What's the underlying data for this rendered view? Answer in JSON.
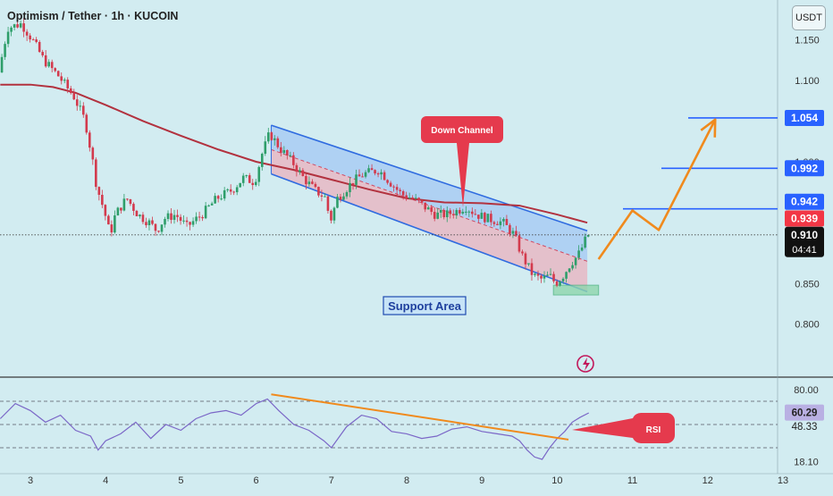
{
  "header": {
    "title": "Optimism / Tether · 1h · KUCOIN",
    "quote_currency": "USDT"
  },
  "annotations": {
    "down_channel": "Down Channel",
    "support_area": "Support Area",
    "rsi": "RSI"
  },
  "colors": {
    "background": "#d2ecf1",
    "candle_up": "#2e9e6a",
    "candle_down": "#d33a4d",
    "moving_average": "#b2323f",
    "channel_upper": "#a9cdf3",
    "channel_lower": "#e7b9c4",
    "channel_line": "#2f6be0",
    "support_zone": "#8fd6ad",
    "projection": "#f08a1d",
    "rsi_line": "#7b67c7",
    "callout_red": "#e53a4d",
    "label_blue": "#2962ff",
    "label_red": "#f23645"
  },
  "chart_data": [
    {
      "type": "candlestick",
      "pair": "Optimism / Tether",
      "timeframe": "1h",
      "exchange": "KUCOIN",
      "x_ticks": [
        "3",
        "4",
        "5",
        "6",
        "7",
        "8",
        "9",
        "10",
        "11",
        "12",
        "13"
      ],
      "y_ticks": [
        "1.150",
        "1.100",
        "1.050",
        "1.000",
        "0.950",
        "0.900",
        "0.850",
        "0.800"
      ],
      "ylim": [
        0.77,
        1.175
      ],
      "price_path": [
        [
          2.6,
          1.11
        ],
        [
          2.72,
          1.165
        ],
        [
          2.9,
          1.17
        ],
        [
          3.05,
          1.15
        ],
        [
          3.2,
          1.125
        ],
        [
          3.4,
          1.105
        ],
        [
          3.6,
          1.08
        ],
        [
          3.75,
          1.05
        ],
        [
          3.85,
          1.0
        ],
        [
          3.9,
          0.97
        ],
        [
          4.0,
          0.94
        ],
        [
          4.08,
          0.91
        ],
        [
          4.15,
          0.935
        ],
        [
          4.3,
          0.955
        ],
        [
          4.45,
          0.935
        ],
        [
          4.6,
          0.925
        ],
        [
          4.7,
          0.915
        ],
        [
          4.8,
          0.93
        ],
        [
          4.95,
          0.935
        ],
        [
          5.1,
          0.92
        ],
        [
          5.3,
          0.935
        ],
        [
          5.5,
          0.955
        ],
        [
          5.7,
          0.965
        ],
        [
          5.85,
          0.98
        ],
        [
          6.0,
          0.975
        ],
        [
          6.1,
          1.01
        ],
        [
          6.2,
          1.035
        ],
        [
          6.35,
          1.015
        ],
        [
          6.5,
          1.0
        ],
        [
          6.65,
          0.98
        ],
        [
          6.8,
          0.965
        ],
        [
          6.95,
          0.955
        ],
        [
          7.0,
          0.925
        ],
        [
          7.1,
          0.955
        ],
        [
          7.3,
          0.975
        ],
        [
          7.45,
          0.985
        ],
        [
          7.65,
          0.99
        ],
        [
          7.8,
          0.975
        ],
        [
          7.95,
          0.96
        ],
        [
          8.1,
          0.955
        ],
        [
          8.25,
          0.945
        ],
        [
          8.4,
          0.935
        ],
        [
          8.55,
          0.935
        ],
        [
          8.7,
          0.94
        ],
        [
          8.8,
          0.945
        ],
        [
          8.95,
          0.935
        ],
        [
          9.1,
          0.93
        ],
        [
          9.3,
          0.925
        ],
        [
          9.45,
          0.91
        ],
        [
          9.55,
          0.885
        ],
        [
          9.7,
          0.86
        ],
        [
          9.82,
          0.855
        ],
        [
          9.92,
          0.86
        ],
        [
          10.0,
          0.85
        ],
        [
          10.1,
          0.86
        ],
        [
          10.2,
          0.875
        ],
        [
          10.3,
          0.885
        ],
        [
          10.38,
          0.9
        ],
        [
          10.42,
          0.91
        ]
      ],
      "moving_average": [
        [
          2.6,
          1.095
        ],
        [
          3.0,
          1.095
        ],
        [
          3.3,
          1.092
        ],
        [
          3.6,
          1.085
        ],
        [
          4.0,
          1.07
        ],
        [
          4.5,
          1.05
        ],
        [
          5.0,
          1.032
        ],
        [
          5.5,
          1.015
        ],
        [
          6.0,
          1.0
        ],
        [
          6.5,
          0.99
        ],
        [
          7.0,
          0.978
        ],
        [
          7.5,
          0.966
        ],
        [
          8.0,
          0.955
        ],
        [
          8.5,
          0.95
        ],
        [
          9.0,
          0.949
        ],
        [
          9.5,
          0.946
        ],
        [
          10.0,
          0.935
        ],
        [
          10.4,
          0.925
        ]
      ],
      "channel": {
        "upper": [
          [
            6.2,
            1.045
          ],
          [
            10.4,
            0.915
          ]
        ],
        "lower": [
          [
            6.2,
            0.985
          ],
          [
            10.4,
            0.84
          ]
        ]
      },
      "support_area": {
        "x": [
          9.95,
          10.55
        ],
        "y": [
          0.836,
          0.848
        ]
      },
      "projection": [
        [
          10.55,
          0.88
        ],
        [
          11.0,
          0.94
        ],
        [
          11.35,
          0.916
        ],
        [
          12.1,
          1.052
        ]
      ],
      "horizontal_levels": [
        1.054,
        0.992,
        0.942
      ],
      "price_labels": [
        {
          "text": "1.054",
          "value": 1.054,
          "style": "blue"
        },
        {
          "text": "0.992",
          "value": 0.992,
          "style": "blue"
        },
        {
          "text": "0.942",
          "value": 0.942,
          "style": "blue"
        },
        {
          "text": "0.939",
          "value": 0.939,
          "style": "red"
        },
        {
          "text": "0.910",
          "value": 0.91,
          "style": "current"
        }
      ],
      "current_price": 0.91,
      "countdown": "04:41"
    },
    {
      "type": "line",
      "name": "RSI",
      "x_ticks": [
        "3",
        "4",
        "5",
        "6",
        "7",
        "8",
        "9",
        "10",
        "11",
        "12",
        "13"
      ],
      "ylim": [
        10,
        90
      ],
      "y_ticks": [
        "80.00",
        "18.10"
      ],
      "reference_levels": [
        70,
        50,
        30
      ],
      "values_path": [
        [
          2.6,
          55
        ],
        [
          2.8,
          68
        ],
        [
          3.0,
          62
        ],
        [
          3.2,
          52
        ],
        [
          3.4,
          58
        ],
        [
          3.6,
          45
        ],
        [
          3.8,
          40
        ],
        [
          3.9,
          28
        ],
        [
          4.0,
          36
        ],
        [
          4.2,
          42
        ],
        [
          4.4,
          52
        ],
        [
          4.6,
          38
        ],
        [
          4.8,
          50
        ],
        [
          5.0,
          45
        ],
        [
          5.2,
          55
        ],
        [
          5.4,
          60
        ],
        [
          5.6,
          62
        ],
        [
          5.8,
          58
        ],
        [
          6.0,
          68
        ],
        [
          6.15,
          72
        ],
        [
          6.3,
          62
        ],
        [
          6.5,
          50
        ],
        [
          6.7,
          45
        ],
        [
          6.9,
          36
        ],
        [
          7.0,
          30
        ],
        [
          7.2,
          48
        ],
        [
          7.4,
          58
        ],
        [
          7.6,
          55
        ],
        [
          7.8,
          44
        ],
        [
          8.0,
          42
        ],
        [
          8.2,
          38
        ],
        [
          8.4,
          40
        ],
        [
          8.6,
          46
        ],
        [
          8.8,
          48
        ],
        [
          9.0,
          44
        ],
        [
          9.2,
          42
        ],
        [
          9.4,
          40
        ],
        [
          9.5,
          36
        ],
        [
          9.6,
          28
        ],
        [
          9.7,
          22
        ],
        [
          9.8,
          20
        ],
        [
          9.9,
          30
        ],
        [
          10.0,
          38
        ],
        [
          10.1,
          44
        ],
        [
          10.2,
          52
        ],
        [
          10.3,
          56
        ],
        [
          10.42,
          60
        ]
      ],
      "trendline": [
        [
          6.2,
          76
        ],
        [
          10.15,
          37
        ]
      ],
      "level_labels": [
        {
          "text": "60.29",
          "value": 60.29,
          "style": "highlight"
        },
        {
          "text": "48.33",
          "value": 48.33,
          "style": "plain"
        }
      ],
      "callout": "RSI"
    }
  ]
}
